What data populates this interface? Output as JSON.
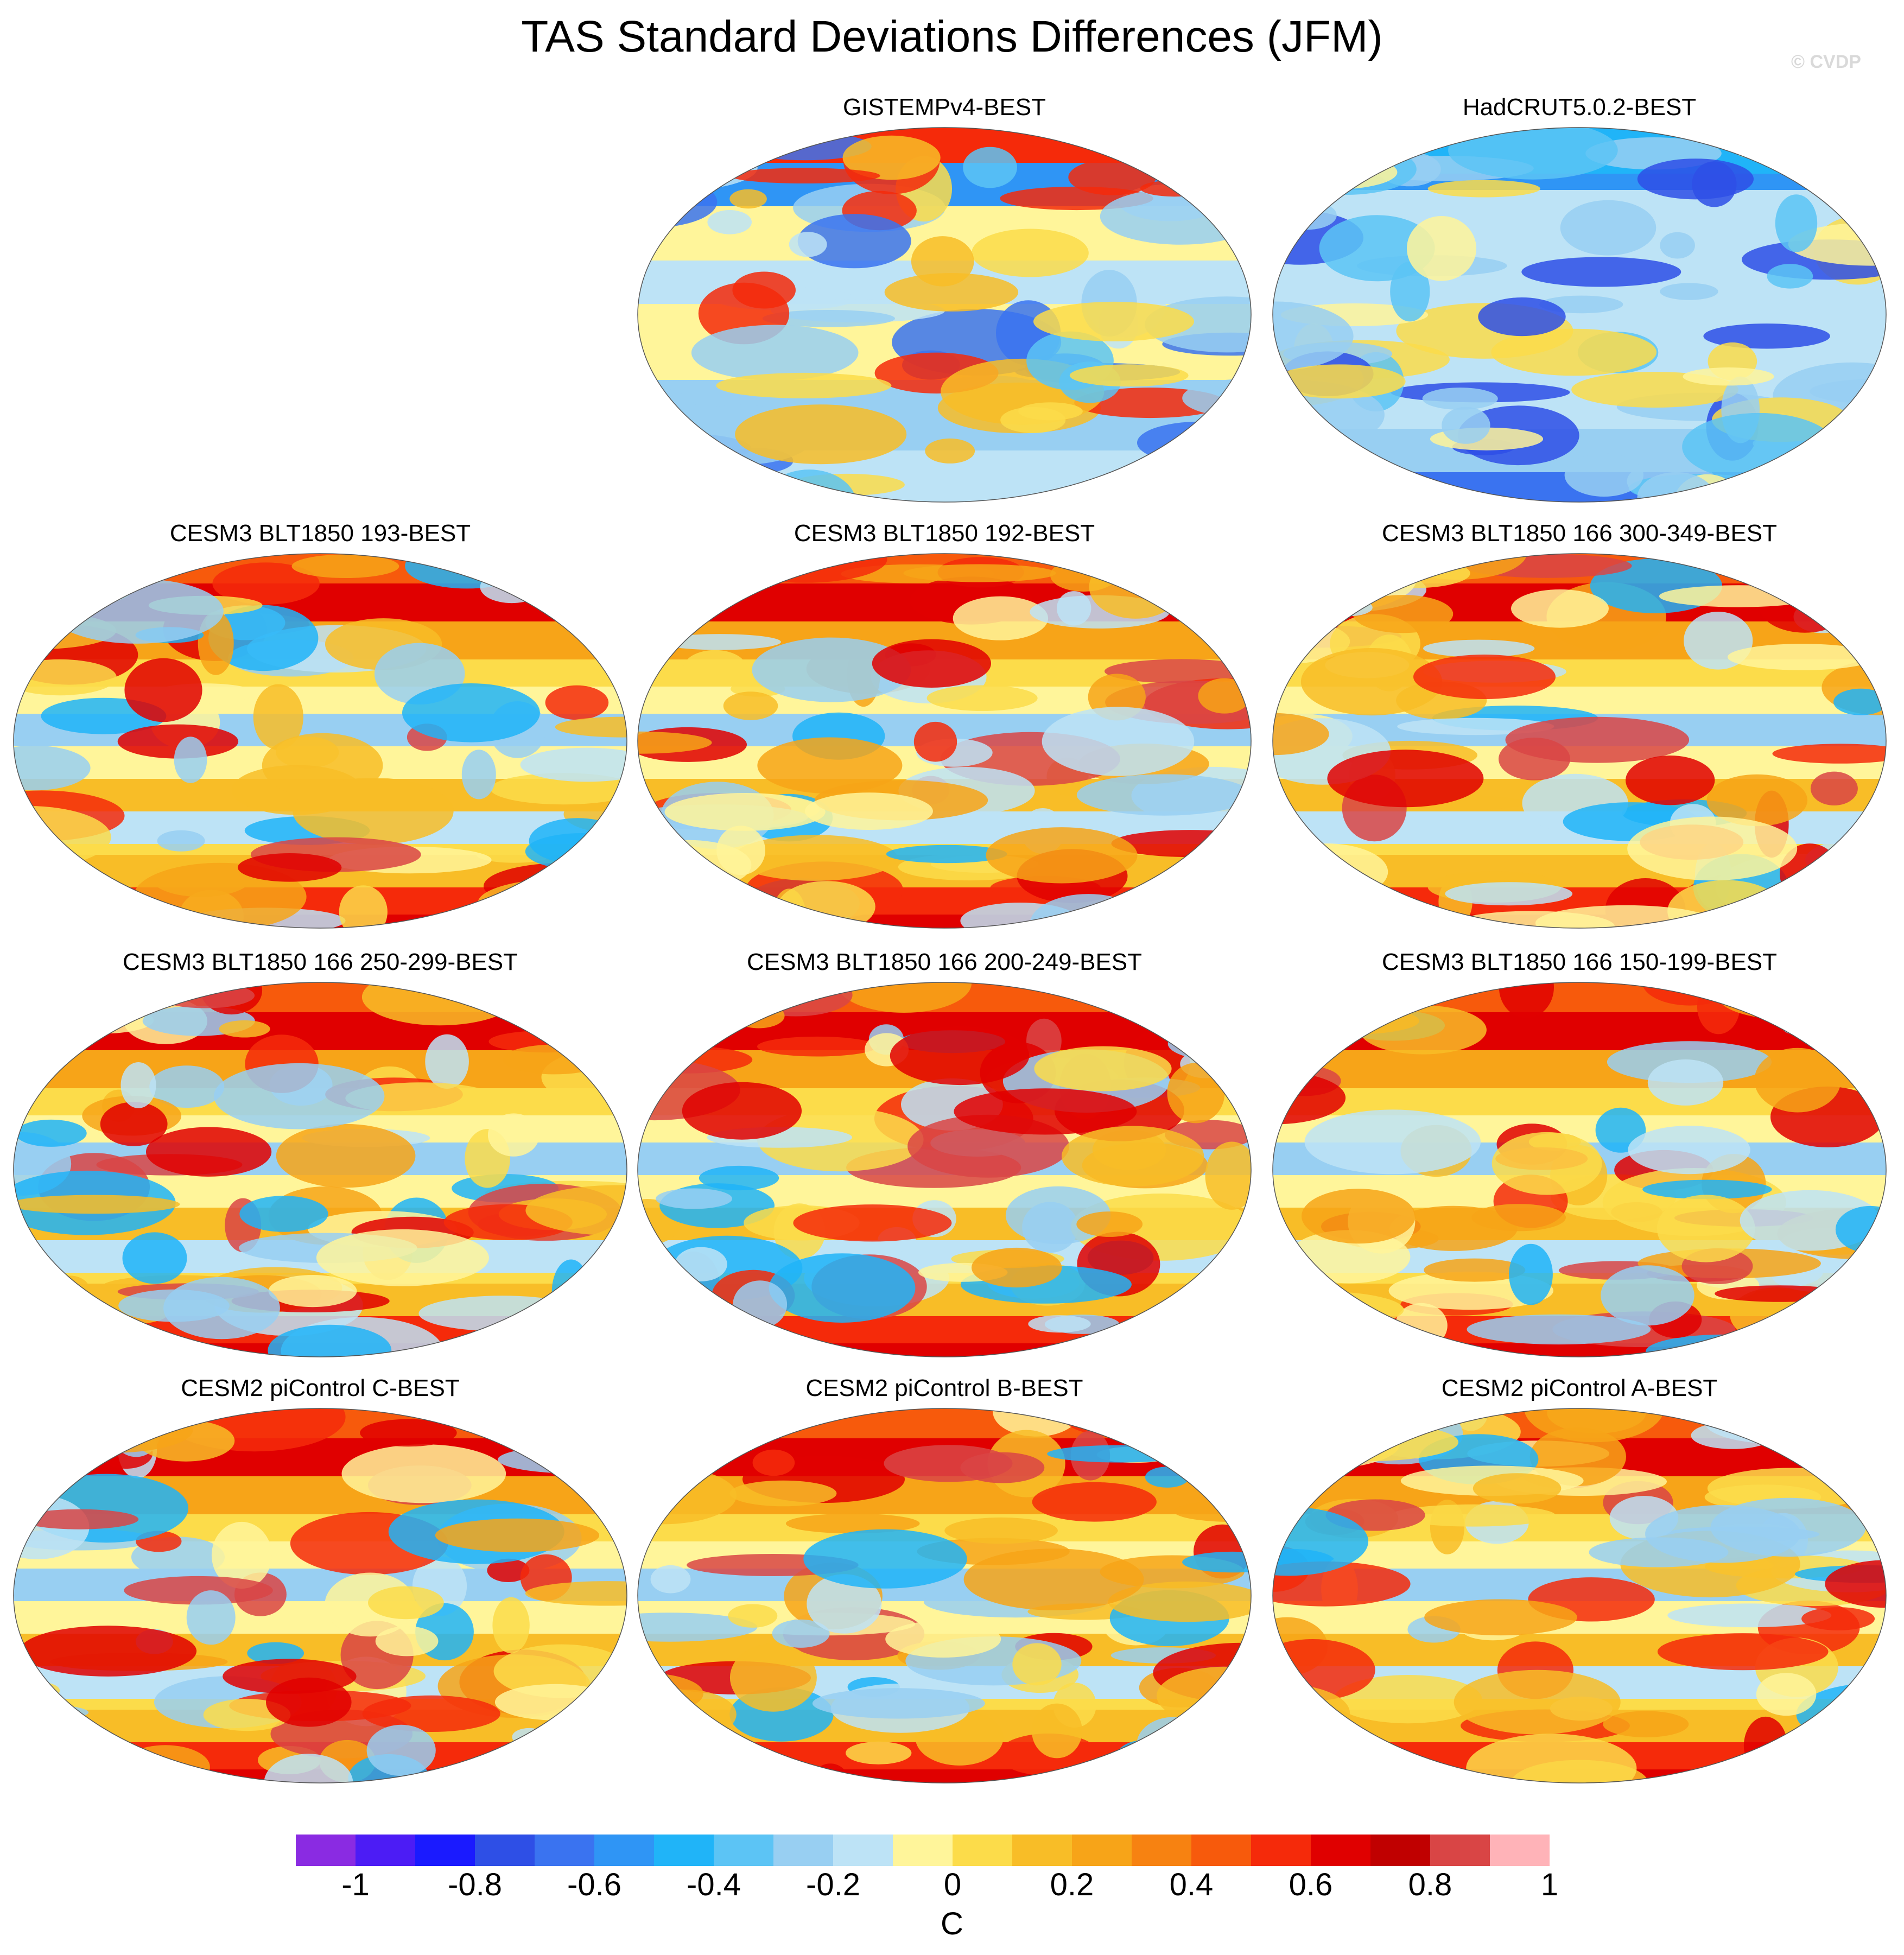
{
  "title": "TAS Standard Deviations Differences (JFM)",
  "watermark": "© CVDP",
  "panels": [
    {
      "id": "gistemp",
      "title": "GISTEMPv4-BEST",
      "scheme": "mixed"
    },
    {
      "id": "hadcrut",
      "title": "HadCRUT5.0.2-BEST",
      "scheme": "cool"
    },
    {
      "id": "cesm3-193",
      "title": "CESM3 BLT1850 193-BEST",
      "scheme": "warm"
    },
    {
      "id": "cesm3-192",
      "title": "CESM3 BLT1850 192-BEST",
      "scheme": "warm"
    },
    {
      "id": "cesm3-300",
      "title": "CESM3 BLT1850 166 300-349-BEST",
      "scheme": "warm"
    },
    {
      "id": "cesm3-250",
      "title": "CESM3 BLT1850 166 250-299-BEST",
      "scheme": "warm"
    },
    {
      "id": "cesm3-200",
      "title": "CESM3 BLT1850 166 200-249-BEST",
      "scheme": "warm"
    },
    {
      "id": "cesm3-150",
      "title": "CESM3 BLT1850 166 150-199-BEST",
      "scheme": "warm"
    },
    {
      "id": "cesm2-c",
      "title": "CESM2 piControl C-BEST",
      "scheme": "warm"
    },
    {
      "id": "cesm2-b",
      "title": "CESM2 piControl B-BEST",
      "scheme": "warm"
    },
    {
      "id": "cesm2-a",
      "title": "CESM2 piControl A-BEST",
      "scheme": "warm"
    }
  ],
  "colorbar": {
    "colors": [
      "#8a2be2",
      "#4c1cf5",
      "#1a1aff",
      "#2e4fe6",
      "#3a73f0",
      "#2f95f5",
      "#20b4f8",
      "#5cc4f5",
      "#98cff2",
      "#bde3f6",
      "#fff59a",
      "#fcdc4a",
      "#f8bd27",
      "#f7a418",
      "#f78211",
      "#f75a0c",
      "#f52a0a",
      "#e00000",
      "#c00000",
      "#d94545",
      "#ffb3b8"
    ],
    "tick_labels": [
      "-1",
      "-0.8",
      "-0.6",
      "-0.4",
      "-0.2",
      "0",
      "0.2",
      "0.4",
      "0.6",
      "0.8",
      "1"
    ],
    "unit": "C"
  }
}
